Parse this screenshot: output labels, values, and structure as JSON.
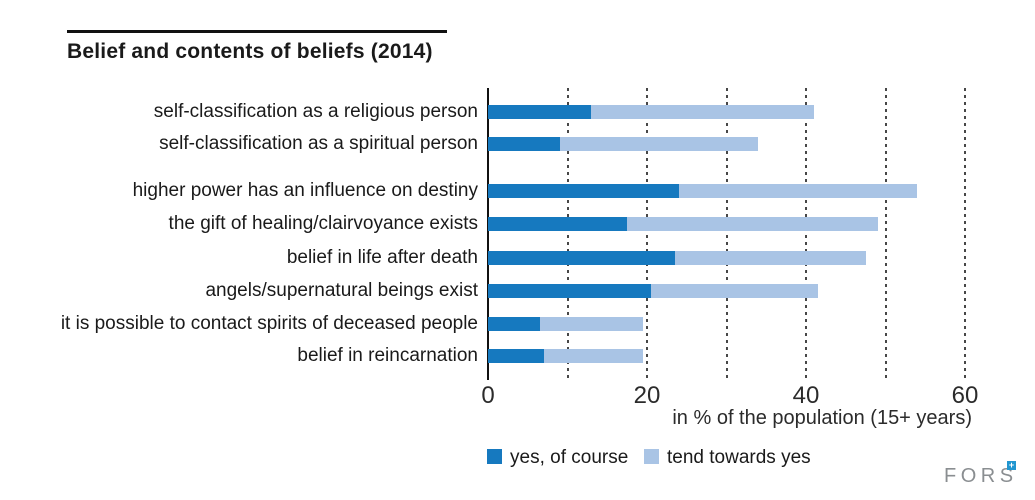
{
  "title": "Belief and contents of beliefs (2014)",
  "chart_data": {
    "type": "bar",
    "orientation": "horizontal",
    "stacked": true,
    "title": "Belief and contents of beliefs (2014)",
    "categories": [
      "self-classification as a religious person",
      "self-classification as a spiritual person",
      "higher power has an influence on destiny",
      "the gift of healing/clairvoyance exists",
      "belief in life after death",
      "angels/supernatural beings exist",
      "it is possible to contact spirits of deceased people",
      "belief in reincarnation"
    ],
    "series": [
      {
        "name": "yes, of course",
        "color": "#1679bf",
        "values": [
          13,
          9,
          24,
          17.5,
          23.5,
          20.5,
          6.5,
          7
        ]
      },
      {
        "name": "tend towards yes",
        "color": "#a9c4e5",
        "values": [
          28,
          25,
          30,
          31.5,
          24,
          21,
          13,
          12.5
        ]
      }
    ],
    "totals": [
      41,
      34,
      54,
      49,
      47.5,
      41.5,
      19.5,
      19.5
    ],
    "xlabel": "in % of the population (15+ years)",
    "xlim": [
      0,
      62
    ],
    "xticks": [
      0,
      20,
      40,
      60
    ],
    "gridline_values": [
      10,
      20,
      30,
      40,
      50,
      60
    ],
    "grid_style": "dashed-vertical",
    "legend_position": "bottom",
    "group_break_after_index": 1
  },
  "legend": {
    "items": [
      {
        "label": "yes, of course",
        "color": "#1679bf"
      },
      {
        "label": "tend towards yes",
        "color": "#a9c4e5"
      }
    ]
  },
  "footer": {
    "logo_text": "FORS",
    "logo_mark": "+"
  },
  "colors": {
    "yes": "#1679bf",
    "tend": "#a9c4e5",
    "axis": "#111111",
    "gridline": "#474747",
    "text": "#1a1a1a",
    "logo_gray": "#8a8e91",
    "logo_blue": "#2196d0"
  }
}
